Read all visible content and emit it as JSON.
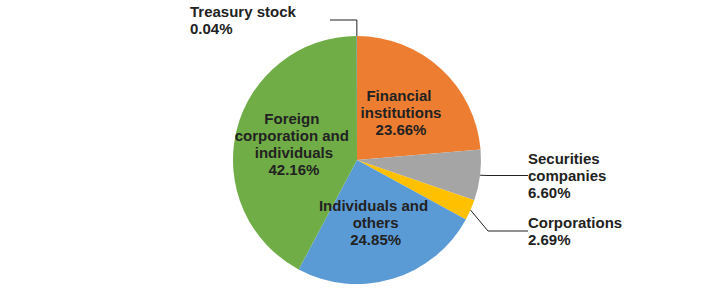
{
  "chart_data": {
    "type": "pie",
    "categories": [
      "Financial institutions",
      "Securities companies",
      "Corporations",
      "Individuals and others",
      "Foreign corporation and individuals",
      "Treasury stock"
    ],
    "values": [
      23.66,
      6.6,
      2.69,
      24.85,
      42.16,
      0.04
    ],
    "value_labels": [
      "23.66%",
      "6.60%",
      "2.69%",
      "24.85%",
      "42.16%",
      "0.04%"
    ],
    "colors": [
      "#ED7D31",
      "#A5A5A5",
      "#FFC000",
      "#5B9BD5",
      "#70AD47",
      "#4472C4"
    ],
    "data_labels": true
  }
}
